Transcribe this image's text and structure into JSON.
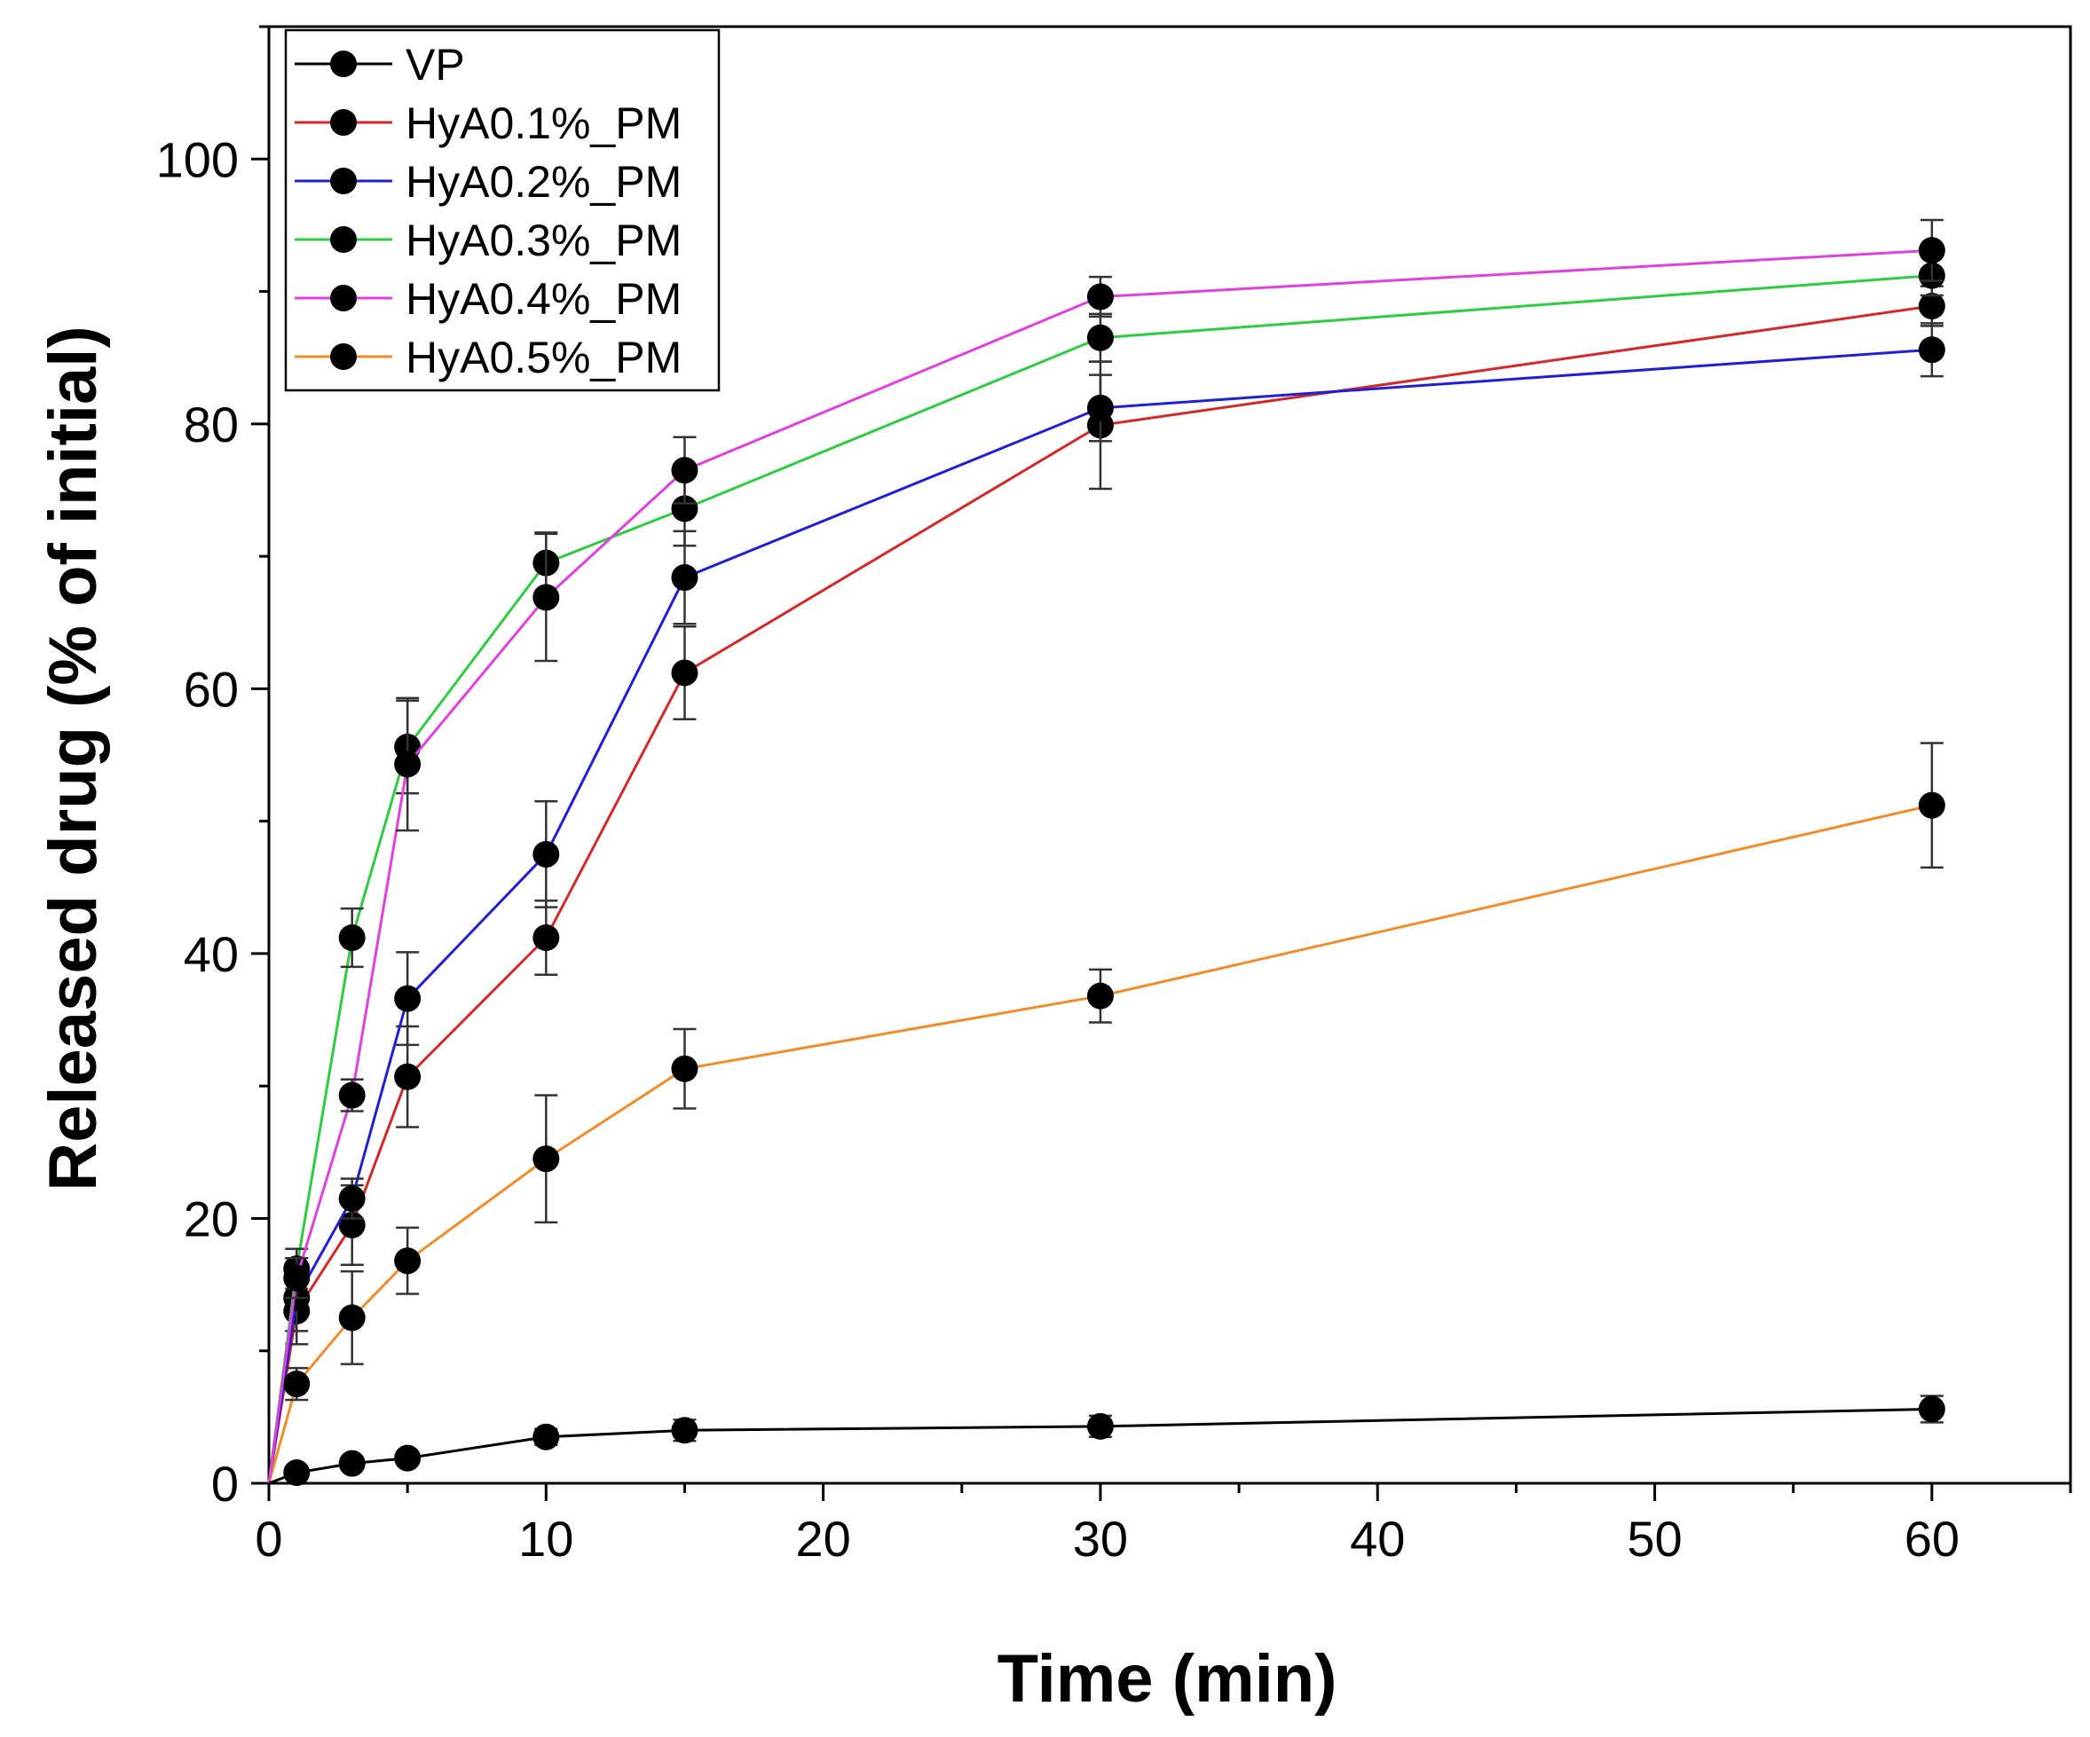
{
  "chart_data": {
    "type": "line",
    "title": "",
    "xlabel": "Time (min)",
    "ylabel": "Released drug (% of initial)",
    "xlim": [
      0,
      65
    ],
    "ylim": [
      0,
      110
    ],
    "x_ticks": [
      0,
      10,
      20,
      30,
      40,
      50,
      60
    ],
    "y_ticks": [
      0,
      20,
      40,
      60,
      80,
      100
    ],
    "grid": false,
    "legend_position": "top-left",
    "x": [
      0,
      1,
      3,
      5,
      10,
      15,
      30,
      60
    ],
    "series": [
      {
        "name": "VP",
        "color": "#000000",
        "values": [
          0,
          0.8,
          1.5,
          1.9,
          3.5,
          4.0,
          4.3,
          5.6
        ],
        "errors": [
          0,
          0.3,
          0.4,
          0.4,
          0.6,
          0.8,
          0.8,
          1.0
        ]
      },
      {
        "name": "HyA0.1%_PM",
        "color": "#d62728",
        "values": [
          0,
          13.0,
          19.5,
          30.7,
          41.2,
          61.2,
          79.9,
          88.9
        ],
        "errors": [
          0,
          2.5,
          3.0,
          3.8,
          2.8,
          3.5,
          4.8,
          1.5
        ]
      },
      {
        "name": "HyA0.2%_PM",
        "color": "#1f1fd6",
        "values": [
          0,
          14.0,
          21.5,
          36.6,
          47.5,
          68.4,
          81.2,
          85.6
        ],
        "errors": [
          0,
          2.5,
          1.5,
          3.5,
          4.0,
          3.5,
          2.5,
          2.0
        ]
      },
      {
        "name": "HyA0.3%_PM",
        "color": "#2ecc40",
        "values": [
          0,
          16.2,
          41.2,
          55.6,
          69.5,
          73.6,
          86.5,
          91.2
        ],
        "errors": [
          0,
          1.5,
          2.2,
          3.5,
          2.3,
          2.8,
          1.8,
          1.5
        ]
      },
      {
        "name": "HyA0.4%_PM",
        "color": "#e040e0",
        "values": [
          0,
          15.5,
          29.3,
          54.3,
          66.9,
          76.5,
          89.6,
          93.1
        ],
        "errors": [
          0,
          1.5,
          1.2,
          5.0,
          4.8,
          2.5,
          1.5,
          2.3
        ]
      },
      {
        "name": "HyA0.5%_PM",
        "color": "#f28c28",
        "values": [
          0,
          7.5,
          12.5,
          16.8,
          24.5,
          31.3,
          36.8,
          51.2
        ],
        "errors": [
          0,
          1.2,
          3.5,
          2.5,
          4.8,
          3.0,
          2.0,
          4.7
        ]
      }
    ]
  }
}
